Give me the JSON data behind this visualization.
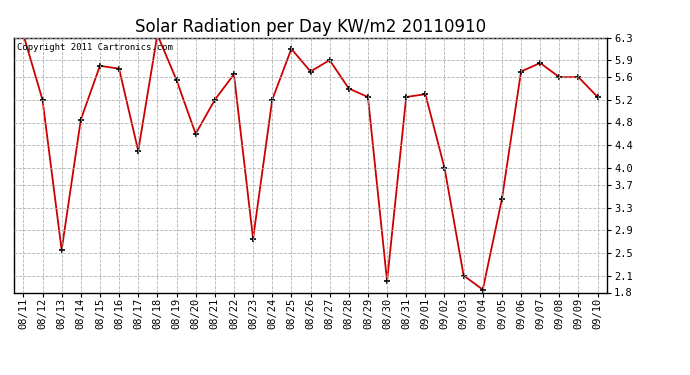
{
  "title": "Solar Radiation per Day KW/m2 20110910",
  "copyright_text": "Copyright 2011 Cartronics.com",
  "dates": [
    "08/11",
    "08/12",
    "08/13",
    "08/14",
    "08/15",
    "08/16",
    "08/17",
    "08/18",
    "08/19",
    "08/20",
    "08/21",
    "08/22",
    "08/23",
    "08/24",
    "08/25",
    "08/26",
    "08/27",
    "08/28",
    "08/29",
    "08/30",
    "08/31",
    "09/01",
    "09/02",
    "09/03",
    "09/04",
    "09/05",
    "09/06",
    "09/07",
    "09/08",
    "09/09",
    "09/10"
  ],
  "values": [
    6.35,
    5.2,
    2.55,
    4.85,
    5.8,
    5.75,
    4.3,
    6.35,
    5.55,
    4.6,
    5.2,
    5.65,
    2.75,
    5.2,
    6.1,
    5.7,
    5.9,
    5.4,
    5.25,
    2.0,
    5.25,
    5.3,
    4.0,
    2.1,
    1.85,
    3.45,
    5.7,
    5.85,
    5.6,
    5.6,
    5.25
  ],
  "line_color": "#cc0000",
  "marker_color": "#000000",
  "bg_color": "#ffffff",
  "grid_color": "#aaaaaa",
  "ylim": [
    1.8,
    6.3
  ],
  "yticks": [
    1.8,
    2.1,
    2.5,
    2.9,
    3.3,
    3.7,
    4.0,
    4.4,
    4.8,
    5.2,
    5.6,
    5.9,
    6.3
  ],
  "title_fontsize": 12,
  "copyright_fontsize": 6.5,
  "tick_fontsize": 7.5,
  "fig_width": 6.9,
  "fig_height": 3.75,
  "dpi": 100
}
